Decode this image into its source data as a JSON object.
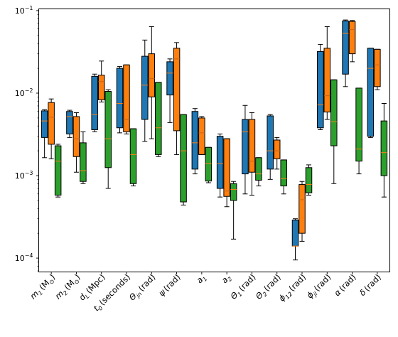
{
  "chart_data": {
    "type": "box",
    "title": "",
    "xlabel": "",
    "ylabel": "",
    "yscale": "log",
    "ylim": [
      6.8e-05,
      0.105
    ],
    "grid": false,
    "legend": "none",
    "y_ticks": [
      {
        "value": 0.0001,
        "base": "10",
        "exp": "−4"
      },
      {
        "value": 0.001,
        "base": "10",
        "exp": "−3"
      },
      {
        "value": 0.01,
        "base": "10",
        "exp": "−2"
      },
      {
        "value": 0.1,
        "base": "10",
        "exp": "−1"
      }
    ],
    "categories": [
      {
        "main": "m",
        "sub": "1",
        "unit": "(M",
        "unitsub": "⊙",
        "unitend": ")"
      },
      {
        "main": "m",
        "sub": "2",
        "unit": "(M",
        "unitsub": "⊙",
        "unitend": ")"
      },
      {
        "main": "d",
        "sub": "L",
        "unit": "(Mpc)",
        "unitsub": "",
        "unitend": ""
      },
      {
        "main": "t",
        "sub": "0",
        "unit": "(seconds)",
        "unitsub": "",
        "unitend": ""
      },
      {
        "main": "Θ",
        "sub": "jn",
        "unit": "(rad)",
        "unitsub": "",
        "unitend": ""
      },
      {
        "main": "ψ",
        "sub": "",
        "unit": "(rad)",
        "unitsub": "",
        "unitend": ""
      },
      {
        "main": "a",
        "sub": "1",
        "unit": "",
        "unitsub": "",
        "unitend": ""
      },
      {
        "main": "a",
        "sub": "2",
        "unit": "",
        "unitsub": "",
        "unitend": ""
      },
      {
        "main": "Θ",
        "sub": "1",
        "unit": "(rad)",
        "unitsub": "",
        "unitend": ""
      },
      {
        "main": "Θ",
        "sub": "2",
        "unit": "(rad)",
        "unitsub": "",
        "unitend": ""
      },
      {
        "main": "ϕ",
        "sub": "12",
        "unit": "(rad)",
        "unitsub": "",
        "unitend": ""
      },
      {
        "main": "ϕ",
        "sub": "jl",
        "unit": "(rad)",
        "unitsub": "",
        "unitend": ""
      },
      {
        "main": "α",
        "sub": "",
        "unit": "(rad)",
        "unitsub": "",
        "unitend": ""
      },
      {
        "main": "δ",
        "sub": "",
        "unit": "(rad)",
        "unitsub": "",
        "unitend": ""
      }
    ],
    "series": [
      {
        "color": "#1f77b4",
        "boxes": [
          {
            "whislo": 0.00165,
            "q1": 0.0029,
            "med": 0.0046,
            "q3": 0.0061,
            "whishi": 0.0063
          },
          {
            "whislo": 0.0029,
            "q1": 0.0032,
            "med": 0.0052,
            "q3": 0.006,
            "whishi": 0.0062
          },
          {
            "whislo": 0.0034,
            "q1": 0.0036,
            "med": 0.0055,
            "q3": 0.016,
            "whishi": 0.017
          },
          {
            "whislo": 0.0033,
            "q1": 0.0038,
            "med": 0.0075,
            "q3": 0.02,
            "whishi": 0.021
          },
          {
            "whislo": 0.0026,
            "q1": 0.0048,
            "med": 0.0125,
            "q3": 0.028,
            "whishi": 0.044
          },
          {
            "whislo": 0.0044,
            "q1": 0.0095,
            "med": 0.0175,
            "q3": 0.024,
            "whishi": 0.026
          },
          {
            "whislo": 0.00105,
            "q1": 0.0012,
            "med": 0.0025,
            "q3": 0.006,
            "whishi": 0.0065
          },
          {
            "whislo": 0.00055,
            "q1": 0.0007,
            "med": 0.0014,
            "q3": 0.003,
            "whishi": 0.0032
          },
          {
            "whislo": 0.0006,
            "q1": 0.00105,
            "med": 0.0034,
            "q3": 0.0048,
            "whishi": 0.0071
          },
          {
            "whislo": 0.0009,
            "q1": 0.0012,
            "med": 0.002,
            "q3": 0.0053,
            "whishi": 0.0055
          },
          {
            "whislo": 9.5e-05,
            "q1": 0.00014,
            "med": 0.00014,
            "q3": 0.00029,
            "whishi": 0.0003
          },
          {
            "whislo": 0.0036,
            "q1": 0.0038,
            "med": 0.0072,
            "q3": 0.032,
            "whishi": 0.039
          },
          {
            "whislo": 0.012,
            "q1": 0.017,
            "med": 0.053,
            "q3": 0.075,
            "whishi": 0.077
          },
          {
            "whislo": 0.0029,
            "q1": 0.003,
            "med": 0.02,
            "q3": 0.035,
            "whishi": 0.035
          }
        ]
      },
      {
        "color": "#ff7f0e",
        "boxes": [
          {
            "whislo": 0.0016,
            "q1": 0.0024,
            "med": 0.0051,
            "q3": 0.0077,
            "whishi": 0.0085
          },
          {
            "whislo": 0.0011,
            "q1": 0.0017,
            "med": 0.0028,
            "q3": 0.0052,
            "whishi": 0.0058
          },
          {
            "whislo": 0.0078,
            "q1": 0.0083,
            "med": 0.0138,
            "q3": 0.0165,
            "whishi": 0.0245
          },
          {
            "whislo": 0.0032,
            "q1": 0.0034,
            "med": 0.0048,
            "q3": 0.022,
            "whishi": 0.022
          },
          {
            "whislo": 0.0028,
            "q1": 0.009,
            "med": 0.015,
            "q3": 0.03,
            "whishi": 0.064
          },
          {
            "whislo": 0.0018,
            "q1": 0.0035,
            "med": 0.026,
            "q3": 0.035,
            "whishi": 0.041
          },
          {
            "whislo": 0.0018,
            "q1": 0.0018,
            "med": 0.0033,
            "q3": 0.005,
            "whishi": 0.0052
          },
          {
            "whislo": 0.00042,
            "q1": 0.00056,
            "med": 0.00065,
            "q3": 0.0028,
            "whishi": 0.0028
          },
          {
            "whislo": 0.00058,
            "q1": 0.0011,
            "med": 0.0015,
            "q3": 0.0048,
            "whishi": 0.0058
          },
          {
            "whislo": 0.0012,
            "q1": 0.0016,
            "med": 0.002,
            "q3": 0.0027,
            "whishi": 0.0029
          },
          {
            "whislo": 0.00016,
            "q1": 0.0002,
            "med": 0.00051,
            "q3": 0.00078,
            "whishi": 0.00085
          },
          {
            "whislo": 0.0048,
            "q1": 0.0059,
            "med": 0.0093,
            "q3": 0.035,
            "whishi": 0.064
          },
          {
            "whislo": 0.024,
            "q1": 0.03,
            "med": 0.059,
            "q3": 0.074,
            "whishi": 0.076
          },
          {
            "whislo": 0.011,
            "q1": 0.012,
            "med": 0.022,
            "q3": 0.034,
            "whishi": 0.034
          }
        ]
      },
      {
        "color": "#2ca02c",
        "boxes": [
          {
            "whislo": 0.00055,
            "q1": 0.00058,
            "med": 0.0015,
            "q3": 0.0023,
            "whishi": 0.0024
          },
          {
            "whislo": 0.0008,
            "q1": 0.00085,
            "med": 0.00115,
            "q3": 0.0025,
            "whishi": 0.0034
          },
          {
            "whislo": 0.0007,
            "q1": 0.00125,
            "med": 0.0028,
            "q3": 0.0105,
            "whishi": 0.011
          },
          {
            "whislo": 0.00075,
            "q1": 0.0008,
            "med": 0.0018,
            "q3": 0.0037,
            "whishi": 0.0037
          },
          {
            "whislo": 0.0017,
            "q1": 0.0018,
            "med": 0.0038,
            "q3": 0.0135,
            "whishi": 0.0135
          },
          {
            "whislo": 0.00044,
            "q1": 0.00048,
            "med": 0.002,
            "q3": 0.0055,
            "whishi": 0.0055
          },
          {
            "whislo": 0.00082,
            "q1": 0.00086,
            "med": 0.0014,
            "q3": 0.0022,
            "whishi": 0.0022
          },
          {
            "whislo": 0.00017,
            "q1": 0.0005,
            "med": 0.00068,
            "q3": 0.0008,
            "whishi": 0.00085
          },
          {
            "whislo": 0.00075,
            "q1": 0.00088,
            "med": 0.00105,
            "q3": 0.00165,
            "whishi": 0.00165
          },
          {
            "whislo": 0.0006,
            "q1": 0.00075,
            "med": 0.00092,
            "q3": 0.00155,
            "whishi": 0.00155
          },
          {
            "whislo": 0.00058,
            "q1": 0.00062,
            "med": 0.00078,
            "q3": 0.00125,
            "whishi": 0.00135
          },
          {
            "whislo": 0.0008,
            "q1": 0.0023,
            "med": 0.0045,
            "q3": 0.0145,
            "whishi": 0.0145
          },
          {
            "whislo": 0.00105,
            "q1": 0.0015,
            "med": 0.0021,
            "q3": 0.0115,
            "whishi": 0.0115
          },
          {
            "whislo": 0.00055,
            "q1": 0.001,
            "med": 0.0019,
            "q3": 0.0046,
            "whishi": 0.0075
          }
        ]
      }
    ]
  }
}
